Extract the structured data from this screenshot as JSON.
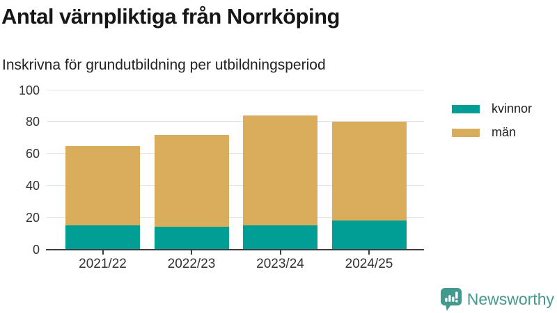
{
  "header": {
    "title": "Antal värnpliktiga från Norrköping",
    "subtitle": "Inskrivna för grundutbildning per utbildningsperiod"
  },
  "chart_data": {
    "type": "bar",
    "stacked": true,
    "title": "Antal värnpliktiga från Norrköping",
    "subtitle": "Inskrivna för grundutbildning per utbildningsperiod",
    "categories": [
      "2021/22",
      "2022/23",
      "2023/24",
      "2024/25"
    ],
    "series": [
      {
        "name": "kvinnor",
        "color": "#009e95",
        "values": [
          15,
          14,
          15,
          18
        ]
      },
      {
        "name": "män",
        "color": "#d9ad5c",
        "values": [
          50,
          58,
          69,
          62
        ]
      }
    ],
    "stack_totals": [
      65,
      72,
      84,
      80
    ],
    "xlabel": "",
    "ylabel": "",
    "ylim": [
      0,
      100
    ],
    "yticks": [
      0,
      20,
      40,
      60,
      80,
      100
    ],
    "grid": true,
    "legend_position": "right"
  },
  "footer": {
    "brand": "Newsworthy"
  },
  "colors": {
    "kvinnor": "#009e95",
    "man": "#d9ad5c",
    "brand_teal": "#44998f",
    "axis": "#3c3c3c",
    "gridline": "#e3e3e3"
  }
}
